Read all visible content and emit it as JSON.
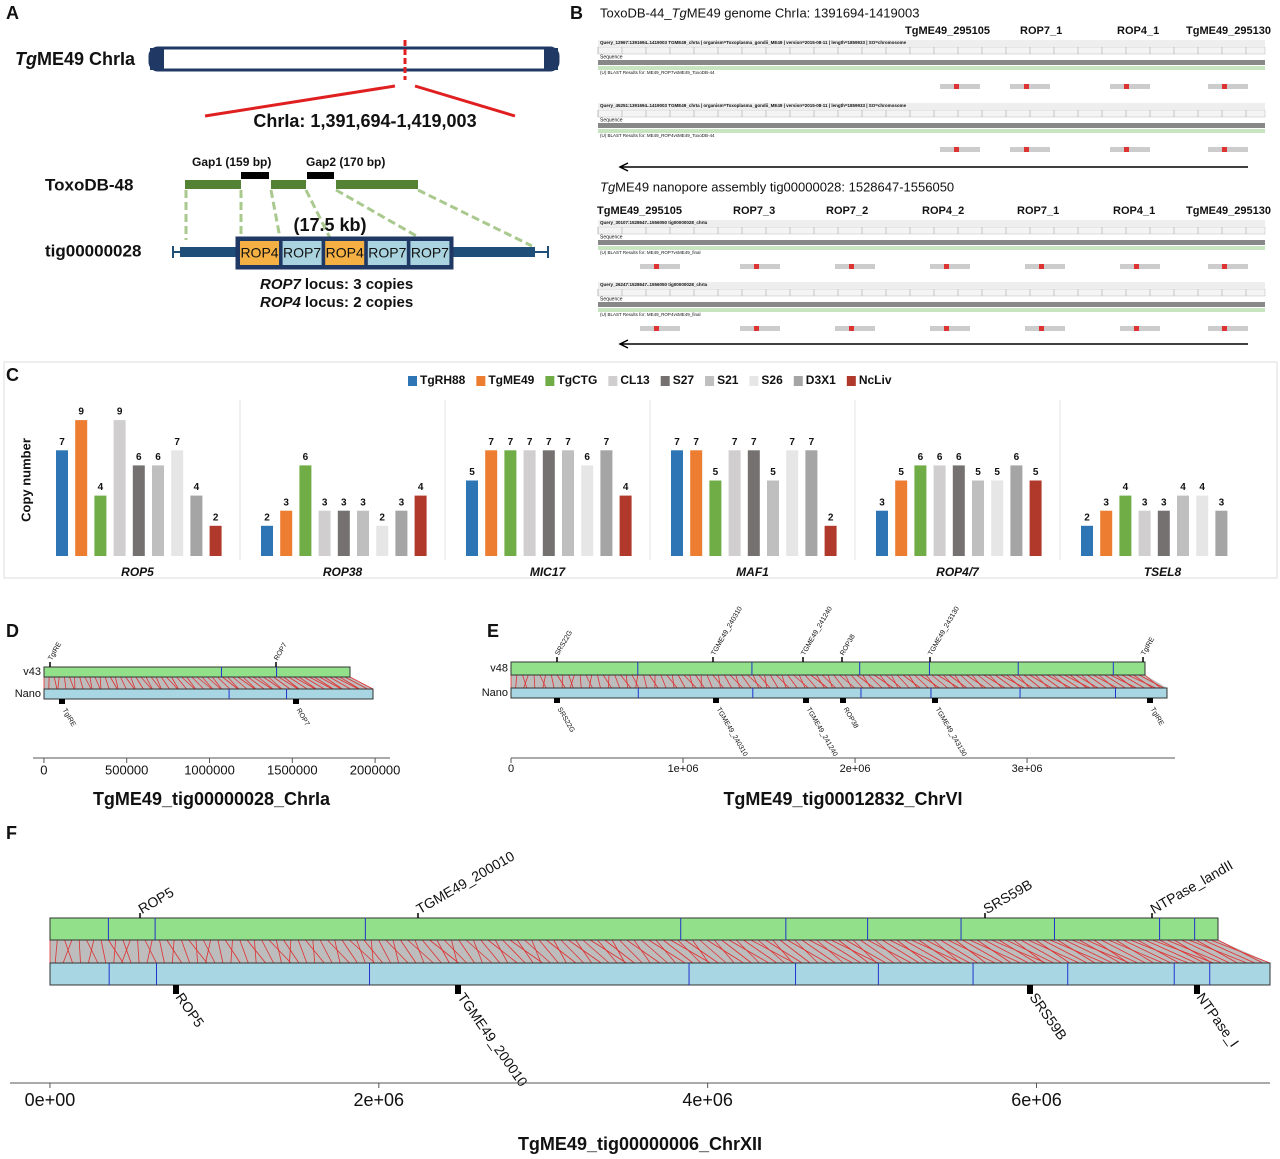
{
  "panel_labels": [
    "A",
    "B",
    "C",
    "D",
    "E",
    "F"
  ],
  "panel_a": {
    "genome": [
      "Tg",
      "ME49 ChrIa"
    ],
    "region": "ChrIa: 1,391,694-1,419,003",
    "gaps": [
      "Gap1 (159 bp)",
      "Gap2 (170 bp)"
    ],
    "reference": "ToxoDB-48",
    "contig": "tig00000028",
    "span": "(17.5 kb)",
    "boxes": [
      "ROP4",
      "ROP7",
      "ROP4",
      "ROP7",
      "ROP7"
    ],
    "notes": [
      [
        "ROP7",
        "locus: 3 copies"
      ],
      [
        "ROP4",
        "locus: 2 copies"
      ]
    ]
  },
  "panel_b": {
    "title1": [
      "ToxoDB-44_",
      "Tg",
      "ME49 genome ChrIa: 1391694-1419003"
    ],
    "genes1": [
      "TgME49_295105",
      "ROP7_1",
      "ROP4_1",
      "TgME49_295130"
    ],
    "title2": [
      "Tg",
      "ME49 nanopore assembly tig00000028: 1528647-1556050"
    ],
    "genes2": [
      "TgME49_295105",
      "ROP7_3",
      "ROP7_2",
      "ROP4_2",
      "ROP7_1",
      "ROP4_1",
      "TgME49_295130"
    ],
    "track_label": "Sequence",
    "tracks": [
      {
        "header": "Query_12967:1391694..1419003 TGME49_chrIa | organism=Toxoplasma_gondii_ME49 | version=2015-08-11 | length=1859933 | SO=chromosome",
        "blast": "(U) BLAST Results for: ME49_ROP7vsME49_ToxoDB-44"
      },
      {
        "header": "Query_45251:1391694..1419003 TGME49_chrIa | organism=Toxoplasma_gondii_ME49 | version=2015-08-11 | length=1859933 | SO=chromosome",
        "blast": "(U) BLAST Results for: ME49_ROP4vsME49_ToxoDB-44"
      },
      {
        "header": "Query_30107:1528647..1556050 tig00000028_chrIa",
        "blast": "(U) BLAST Results for: ME49_ROP7vsME49_final"
      },
      {
        "header": "Query_26247:1528647..1556050 tig00000028_chrIa",
        "blast": "(U) BLAST Results for: ME49_ROP4vsME49_final"
      }
    ]
  },
  "panel_c": {
    "type": "bar",
    "ylabel": "Copy number",
    "categories": [
      "ROP5",
      "ROP38",
      "MIC17",
      "MAF1",
      "ROP4/7",
      "TSEL8"
    ],
    "ylim": [
      0,
      10
    ],
    "series": [
      {
        "name": "TgRH88",
        "color": "#2e75b6",
        "values": [
          7,
          2,
          5,
          7,
          3,
          2
        ]
      },
      {
        "name": "TgME49",
        "color": "#ed7d31",
        "values": [
          9,
          3,
          7,
          7,
          5,
          3
        ]
      },
      {
        "name": "TgCTG",
        "color": "#70ad47",
        "values": [
          4,
          6,
          7,
          5,
          6,
          4
        ]
      },
      {
        "name": "CL13",
        "color": "#d0cece",
        "values": [
          9,
          3,
          7,
          7,
          6,
          3
        ]
      },
      {
        "name": "S27",
        "color": "#767171",
        "values": [
          6,
          3,
          7,
          7,
          6,
          3
        ]
      },
      {
        "name": "S21",
        "color": "#bfbfbf",
        "values": [
          6,
          3,
          7,
          5,
          5,
          4
        ]
      },
      {
        "name": "S26",
        "color": "#e7e6e6",
        "values": [
          7,
          2,
          6,
          7,
          5,
          4
        ]
      },
      {
        "name": "D3X1",
        "color": "#a5a5a5",
        "values": [
          4,
          3,
          7,
          7,
          6,
          3
        ]
      },
      {
        "name": "NcLiv",
        "color": "#b0392b",
        "values": [
          2,
          4,
          4,
          2,
          5,
          null
        ]
      }
    ]
  },
  "panel_d": {
    "title": "TgME49_tig00000028_ChrIa",
    "reference": "v43",
    "query": "Nano",
    "genes_top": [
      "TgIRE",
      "ROP7"
    ],
    "genes_bottom": [
      "TgIRE",
      "ROP7"
    ],
    "xlim": [
      -66000,
      2090000
    ],
    "xticks": [
      0,
      500000,
      1000000,
      1500000,
      2000000
    ]
  },
  "panel_e": {
    "title": "TgME49_tig00012832_ChrVI",
    "reference": "v48",
    "query": "Nano",
    "genes_top": [
      "SRS22G",
      "TGME49_240310",
      "TGME49_241240",
      "ROP38",
      "TGME49_243130",
      "TgIRE"
    ],
    "genes_bottom": [
      "SRS22G",
      "TGME49_240310",
      "TGME49_241240",
      "ROP38",
      "TGME49_243130",
      "TgIRE"
    ],
    "xlim": [
      0,
      3860000
    ],
    "xticks": [
      0,
      {
        "value": 1000000,
        "label": "1e+06"
      },
      {
        "value": 2000000,
        "label": "2e+06"
      },
      {
        "value": 3000000,
        "label": "3e+06"
      }
    ]
  },
  "panel_f": {
    "title": "TgME49_tig00000006_ChrXII",
    "genes_top": [
      "ROP5",
      "TGME49_200010",
      "SRS59B",
      "NTPase_landII"
    ],
    "genes_bottom": [
      "ROP5",
      "TGME49_200010",
      "SRS59B",
      "NTPase_I"
    ],
    "xlim": [
      -243000,
      7420000
    ],
    "xticks": [
      {
        "value": 0,
        "label": "0e+00"
      },
      {
        "value": 2000000,
        "label": "2e+06"
      },
      {
        "value": 4000000,
        "label": "4e+06"
      },
      {
        "value": 6000000,
        "label": "6e+06"
      }
    ]
  }
}
